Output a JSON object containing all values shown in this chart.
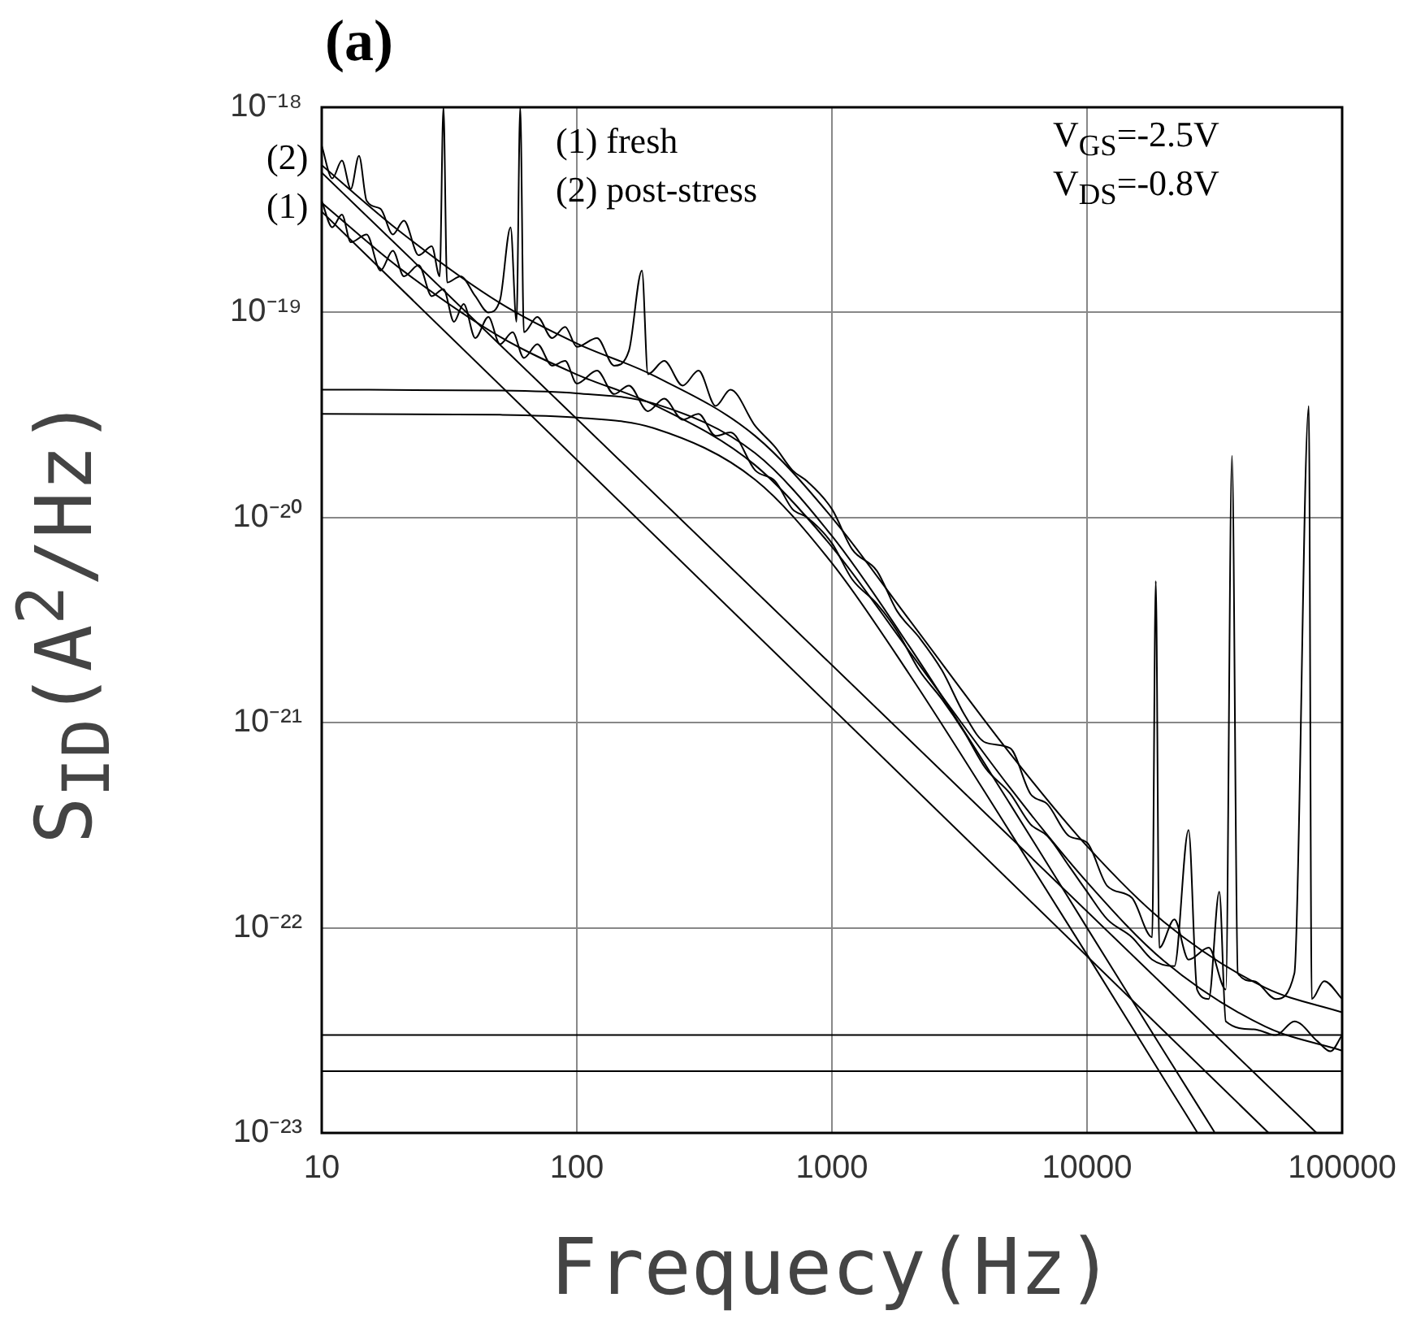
{
  "chart_data": {
    "type": "line",
    "title": "(a)",
    "xlabel": "Frequecy(Hz)",
    "ylabel": "S$_{ID}$(A$^{2}$/Hz)",
    "log": "xy",
    "grid": true,
    "legend": false,
    "xlim": [
      10,
      100000
    ],
    "xticks": [
      10,
      100,
      1000,
      10000,
      100000
    ],
    "ylim": [
      1e-23,
      1e-18
    ],
    "yticks": [
      {
        "value": 1e-23,
        "label": "10⁻²³"
      },
      {
        "value": 1e-22,
        "label": "10⁻²²"
      },
      {
        "value": 1e-21,
        "label": "10⁻²¹"
      },
      {
        "value": 1e-20,
        "label": "10⁻²⁰"
      },
      {
        "value": 1e-19,
        "label": "10⁻¹⁹"
      },
      {
        "value": 1e-18,
        "label": "10⁻¹⁸"
      }
    ],
    "annotations": [
      "(1) fresh",
      "(2) post-stress",
      "V$_{GS}$=-2.5V",
      "V$_{DS}$=-0.8V",
      "(2)",
      "(1)"
    ],
    "series": [
      {
        "color": "#000000",
        "x": [
          10,
          11,
          12,
          13,
          14,
          15,
          17,
          19,
          21,
          24,
          27,
          29,
          30,
          31,
          35,
          40,
          45,
          50,
          55,
          58,
          60,
          62,
          70,
          80,
          90,
          100,
          120,
          140,
          160,
          180,
          190,
          220,
          260,
          300,
          350,
          400,
          500,
          600,
          700,
          800,
          1000,
          1200,
          1500,
          1800,
          2200,
          2700,
          3300,
          4000,
          5000,
          6000,
          7000,
          8500,
          10000,
          12000,
          15000,
          18000,
          18600,
          19200,
          22000,
          25000,
          30000,
          35000,
          37000,
          39000,
          45000,
          55000,
          65000,
          74000,
          76000,
          85000,
          100000
        ],
        "values": [
          6.5e-19,
          4.5e-19,
          5.5e-19,
          4e-19,
          5.8e-19,
          3.5e-19,
          3.2e-19,
          2.4e-19,
          2.8e-19,
          1.9e-19,
          2.1e-19,
          1.5e-19,
          1e-18,
          1.4e-19,
          1.5e-19,
          1.2e-19,
          1e-19,
          1.15e-19,
          2.6e-19,
          9e-20,
          1e-18,
          8e-20,
          9.5e-20,
          7.5e-20,
          8.5e-20,
          6.8e-20,
          7.5e-20,
          5.5e-20,
          6.5e-20,
          1.6e-19,
          5e-20,
          5.8e-20,
          4.4e-20,
          5.2e-20,
          3.5e-20,
          4.2e-20,
          2.8e-20,
          2.2e-20,
          1.7e-20,
          1.5e-20,
          1.1e-20,
          7e-21,
          5.5e-21,
          3.5e-21,
          2.6e-21,
          1.8e-21,
          1.1e-21,
          8e-22,
          7.5e-22,
          4.5e-22,
          4e-22,
          2.8e-22,
          2.6e-22,
          1.6e-22,
          1.4e-22,
          9e-23,
          4.9e-21,
          8e-23,
          1.1e-22,
          7e-23,
          8e-23,
          5e-23,
          2e-20,
          6e-23,
          5.5e-23,
          4.5e-23,
          6e-23,
          3.5e-20,
          4.5e-23,
          5.5e-23,
          4.5e-23
        ]
      },
      {
        "color": "#000000",
        "x": [
          10,
          11,
          12,
          13,
          15,
          17,
          19,
          21,
          24,
          27,
          30,
          33,
          36,
          40,
          45,
          50,
          56,
          62,
          70,
          80,
          90,
          100,
          120,
          140,
          160,
          190,
          220,
          260,
          300,
          350,
          400,
          500,
          600,
          700,
          800,
          1000,
          1200,
          1500,
          1800,
          2200,
          2700,
          3300,
          4000,
          5000,
          6000,
          7000,
          8500,
          10000,
          12000,
          15000,
          18000,
          22000,
          25000,
          27000,
          30000,
          33000,
          35000,
          45000,
          55000,
          65000,
          80000,
          90000,
          100000
        ],
        "values": [
          3.5e-19,
          2.6e-19,
          3e-19,
          2.2e-19,
          2.4e-19,
          1.6e-19,
          2e-19,
          1.5e-19,
          1.7e-19,
          1.2e-19,
          1.3e-19,
          9e-20,
          1.1e-19,
          7.5e-20,
          9.5e-20,
          7e-20,
          8e-20,
          6e-20,
          7e-20,
          5.5e-20,
          5.8e-20,
          4.5e-20,
          5.2e-20,
          4e-20,
          4.4e-20,
          3.3e-20,
          3.8e-20,
          3e-20,
          3.2e-20,
          2.5e-20,
          2.6e-20,
          1.7e-20,
          1.5e-20,
          1.1e-20,
          1e-20,
          7.5e-21,
          5e-21,
          3.8e-21,
          2.8e-21,
          1.8e-21,
          1.3e-21,
          9e-22,
          6e-22,
          4.5e-22,
          3.2e-22,
          2.8e-22,
          2e-22,
          1.5e-22,
          1.1e-22,
          9e-23,
          7e-23,
          6.5e-23,
          3e-22,
          5e-23,
          4.5e-23,
          1.5e-22,
          3.5e-23,
          3.2e-23,
          3e-23,
          3.5e-23,
          2.8e-23,
          2.5e-23,
          3e-23
        ]
      },
      {
        "color": "#000000",
        "x": [
          10,
          20,
          50,
          100,
          200,
          500,
          1000,
          2000,
          5000,
          10000,
          20000,
          50000,
          100000
        ],
        "values": [
          5.22e-19,
          2.51e-19,
          1.11e-19,
          7.06e-20,
          4.92e-20,
          2.5e-20,
          1e-20,
          3.2e-21,
          7.06e-22,
          2.5e-22,
          1.07e-22,
          5.1e-23,
          3.87e-23
        ]
      },
      {
        "color": "#000000",
        "x": [
          10,
          20,
          50,
          100,
          200,
          500,
          1000,
          2000,
          5000,
          10000,
          20000,
          50000,
          100000
        ],
        "values": [
          3.42e-19,
          1.66e-19,
          7.6e-20,
          4.98e-20,
          3.55e-20,
          1.8e-20,
          7.2e-21,
          2.25e-21,
          4.8e-22,
          1.67e-22,
          6.9e-23,
          3.3e-23,
          2.52e-23
        ]
      },
      {
        "color": "#000000",
        "x": [
          10,
          79400
        ],
        "values": [
          4.8e-19,
          1e-23
        ]
      },
      {
        "color": "#000000",
        "x": [
          10,
          51500
        ],
        "values": [
          3.1e-19,
          1e-23
        ]
      },
      {
        "color": "#000000",
        "x": [
          10,
          50,
          100,
          200,
          500,
          1000,
          2000,
          5000,
          10000,
          20000,
          31600
        ],
        "values": [
          4.2e-20,
          4.16e-20,
          4.03e-20,
          3.6e-20,
          2.06e-20,
          8.13e-21,
          2.38e-21,
          4e-22,
          1e-22,
          2.5e-23,
          1.01e-23
        ]
      },
      {
        "color": "#000000",
        "x": [
          10,
          50,
          100,
          200,
          500,
          1000,
          2000,
          5000,
          10000,
          20000,
          27000
        ],
        "values": [
          3.2e-20,
          3.17e-20,
          3.07e-20,
          2.73e-20,
          1.53e-20,
          5.99e-21,
          1.74e-21,
          2.92e-22,
          7.4e-23,
          1.84e-23,
          1.01e-23
        ]
      },
      {
        "color": "#000000",
        "x": [
          10,
          100000
        ],
        "values": [
          3e-23,
          3e-23
        ]
      },
      {
        "color": "#000000",
        "x": [
          10,
          100000
        ],
        "values": [
          2e-23,
          2e-23
        ]
      }
    ]
  }
}
